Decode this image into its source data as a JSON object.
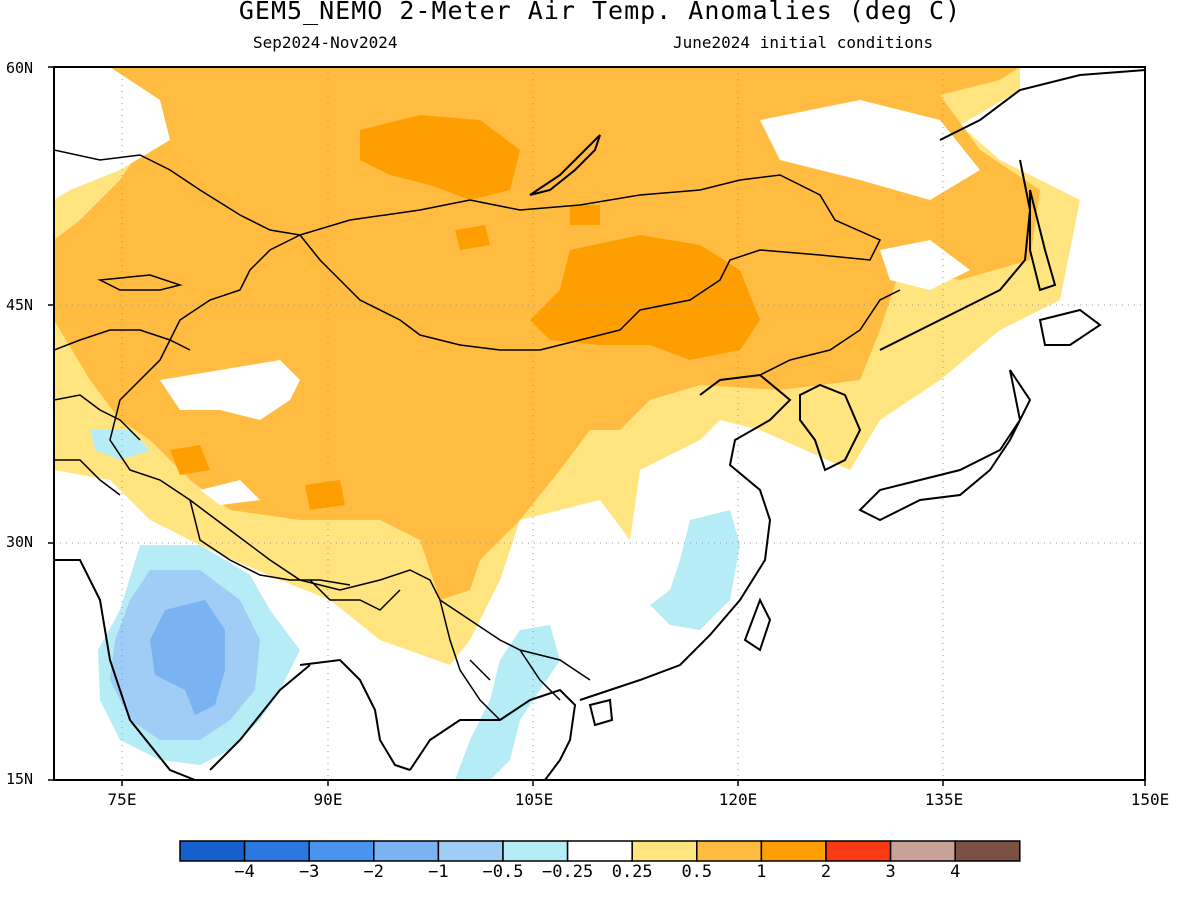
{
  "title": "GEM5_NEMO 2-Meter Air Temp. Anomalies (deg C)",
  "subtitle_left": "Sep2024-Nov2024",
  "subtitle_right": "June2024 initial conditions",
  "lat_labels": [
    "60N",
    "45N",
    "30N",
    "15N"
  ],
  "lon_labels": [
    "75E",
    "90E",
    "105E",
    "120E",
    "135E",
    "150E"
  ],
  "colorbar": {
    "colors": [
      "#1560cc",
      "#2a78e0",
      "#4a94ee",
      "#79b3f2",
      "#9fcdf6",
      "#b6ecf5",
      "#ffffff",
      "#ffe480",
      "#ffbc40",
      "#ff9e00",
      "#fa3a12",
      "#c8a296",
      "#7b5144"
    ],
    "labels": [
      "−4",
      "−3",
      "−2",
      "−1",
      "−0.5",
      "−0.25",
      "0.25",
      "0.5",
      "1",
      "2",
      "3",
      "4"
    ]
  }
}
